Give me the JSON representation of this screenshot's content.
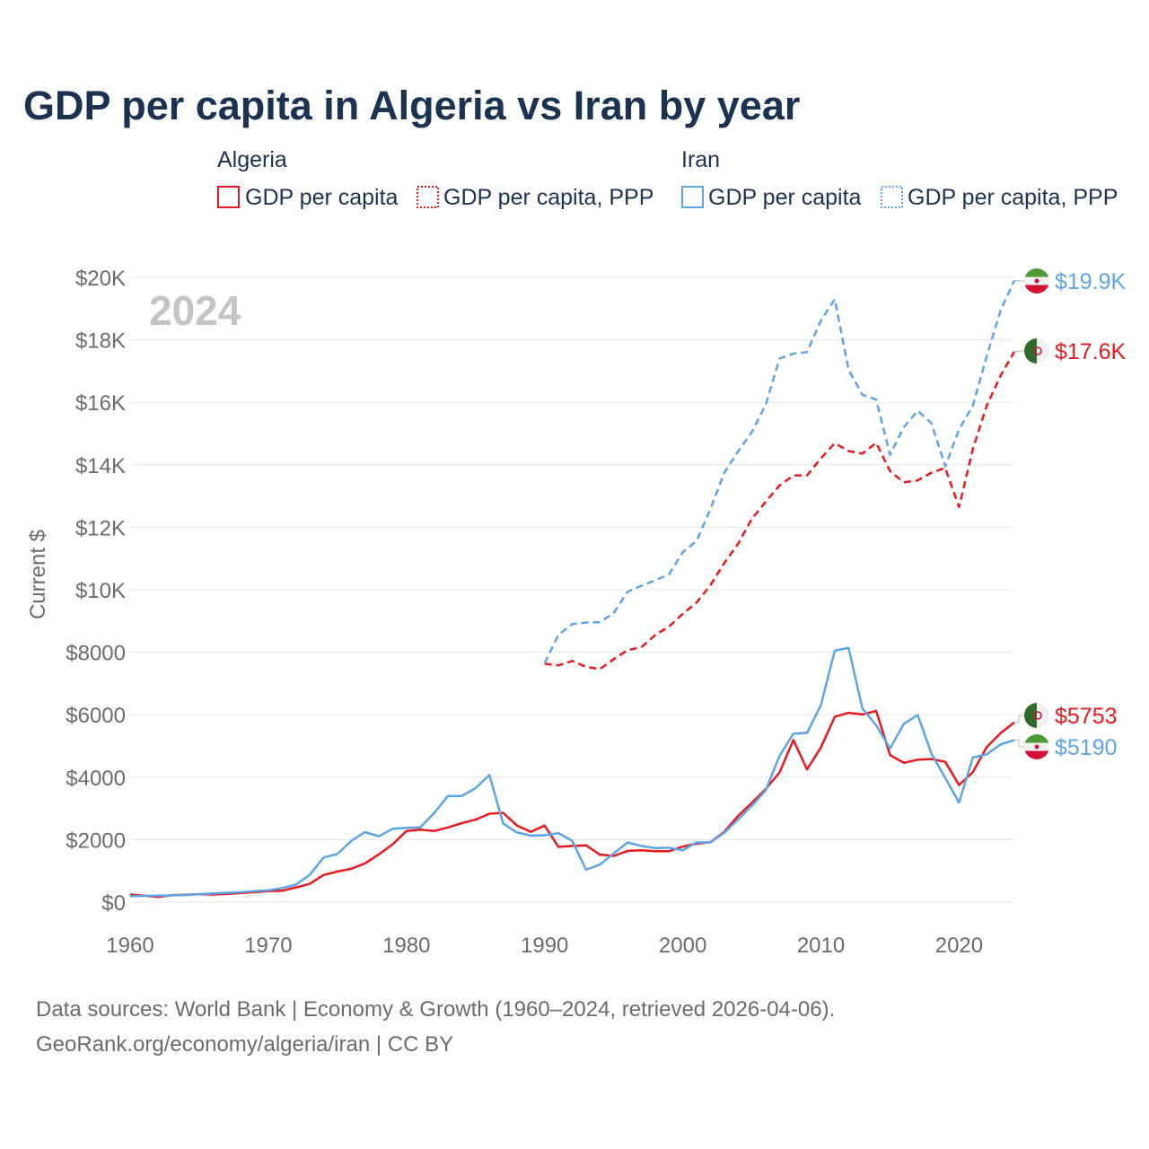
{
  "chart_data": {
    "type": "line",
    "title": "GDP per capita in Algeria vs Iran by year",
    "year_badge": "2024",
    "ylabel": "Current $",
    "xlim": [
      1960,
      2024
    ],
    "ylim": [
      0,
      20000
    ],
    "x_ticks": [
      1960,
      1970,
      1980,
      1990,
      2000,
      2010,
      2020
    ],
    "x_tick_labels": [
      "1960",
      "1970",
      "1980",
      "1990",
      "2000",
      "2010",
      "2020"
    ],
    "y_ticks": [
      0,
      2000,
      4000,
      6000,
      8000,
      10000,
      12000,
      14000,
      16000,
      18000,
      20000
    ],
    "y_tick_labels": [
      "$0",
      "$2000",
      "$4000",
      "$6000",
      "$8000",
      "$10K",
      "$12K",
      "$14K",
      "$16K",
      "$18K",
      "$20K"
    ],
    "legend": {
      "groups": [
        {
          "name": "Algeria",
          "entries": [
            "GDP per capita",
            "GDP per capita, PPP"
          ]
        },
        {
          "name": "Iran",
          "entries": [
            "GDP per capita",
            "GDP per capita, PPP"
          ]
        }
      ]
    },
    "colors": {
      "algeria": "#e8191e",
      "iran": "#5ca4e6"
    },
    "series": [
      {
        "name": "Algeria GDP per capita",
        "key": "alg_gdp",
        "color": "#e8191e",
        "dash": "solid",
        "end_label": "$5753",
        "flag": "algeria",
        "x": [
          1960,
          1961,
          1962,
          1963,
          1964,
          1965,
          1966,
          1967,
          1968,
          1969,
          1970,
          1971,
          1972,
          1973,
          1974,
          1975,
          1976,
          1977,
          1978,
          1979,
          1980,
          1981,
          1982,
          1983,
          1984,
          1985,
          1986,
          1987,
          1988,
          1989,
          1990,
          1991,
          1992,
          1993,
          1994,
          1995,
          1996,
          1997,
          1998,
          1999,
          2000,
          2001,
          2002,
          2003,
          2004,
          2005,
          2006,
          2007,
          2008,
          2009,
          2010,
          2011,
          2012,
          2013,
          2014,
          2015,
          2016,
          2017,
          2018,
          2019,
          2020,
          2021,
          2022,
          2023,
          2024
        ],
        "values": [
          245,
          210,
          165,
          220,
          235,
          255,
          245,
          265,
          290,
          320,
          350,
          365,
          470,
          585,
          870,
          980,
          1070,
          1240,
          1530,
          1850,
          2280,
          2320,
          2280,
          2390,
          2530,
          2640,
          2830,
          2860,
          2450,
          2250,
          2450,
          1770,
          1800,
          1820,
          1520,
          1480,
          1640,
          1660,
          1630,
          1630,
          1780,
          1870,
          1920,
          2250,
          2760,
          3180,
          3620,
          4150,
          5190,
          4250,
          4950,
          5930,
          6060,
          6010,
          6120,
          4710,
          4460,
          4560,
          4580,
          4490,
          3750,
          4160,
          4960,
          5410,
          5753
        ]
      },
      {
        "name": "Iran GDP per capita",
        "key": "iran_gdp",
        "color": "#5ca4e6",
        "dash": "solid",
        "end_label": "$5190",
        "flag": "iran",
        "x": [
          1960,
          1961,
          1962,
          1963,
          1964,
          1965,
          1966,
          1967,
          1968,
          1969,
          1970,
          1971,
          1972,
          1973,
          1974,
          1975,
          1976,
          1977,
          1978,
          1979,
          1980,
          1981,
          1982,
          1983,
          1984,
          1985,
          1986,
          1987,
          1988,
          1989,
          1990,
          1991,
          1992,
          1993,
          1994,
          1995,
          1996,
          1997,
          1998,
          1999,
          2000,
          2001,
          2002,
          2003,
          2004,
          2005,
          2006,
          2007,
          2008,
          2009,
          2010,
          2011,
          2012,
          2013,
          2014,
          2015,
          2016,
          2017,
          2018,
          2019,
          2020,
          2021,
          2022,
          2023,
          2024
        ],
        "values": [
          190,
          200,
          210,
          215,
          230,
          255,
          280,
          300,
          320,
          350,
          380,
          450,
          560,
          870,
          1430,
          1540,
          1960,
          2240,
          2110,
          2350,
          2380,
          2390,
          2850,
          3400,
          3400,
          3650,
          4070,
          2520,
          2230,
          2130,
          2140,
          2210,
          1960,
          1040,
          1200,
          1560,
          1910,
          1800,
          1730,
          1740,
          1660,
          1910,
          1910,
          2220,
          2640,
          3090,
          3580,
          4680,
          5390,
          5420,
          6310,
          8050,
          8140,
          6200,
          5660,
          4920,
          5710,
          5990,
          4750,
          3980,
          3190,
          4630,
          4730,
          5050,
          5190
        ]
      },
      {
        "name": "Algeria GDP per capita, PPP",
        "key": "alg_ppp",
        "color": "#e8191e",
        "dash": "dashed",
        "end_label": "$17.6K",
        "flag": "algeria",
        "x": [
          1990,
          1991,
          1992,
          1993,
          1994,
          1995,
          1996,
          1997,
          1998,
          1999,
          2000,
          2001,
          2002,
          2003,
          2004,
          2005,
          2006,
          2007,
          2008,
          2009,
          2010,
          2011,
          2012,
          2013,
          2014,
          2015,
          2016,
          2017,
          2018,
          2019,
          2020,
          2021,
          2022,
          2023,
          2024
        ],
        "values": [
          7630,
          7580,
          7720,
          7530,
          7460,
          7780,
          8070,
          8160,
          8550,
          8820,
          9230,
          9590,
          10150,
          10850,
          11470,
          12270,
          12820,
          13340,
          13660,
          13660,
          14210,
          14690,
          14440,
          14360,
          14700,
          13800,
          13440,
          13500,
          13750,
          13900,
          12650,
          14510,
          15890,
          16850,
          17620
        ]
      },
      {
        "name": "Iran GDP per capita, PPP",
        "key": "iran_ppp",
        "color": "#5ca4e6",
        "dash": "dashed",
        "end_label": "$19.9K",
        "flag": "iran",
        "x": [
          1990,
          1991,
          1992,
          1993,
          1994,
          1995,
          1996,
          1997,
          1998,
          1999,
          2000,
          2001,
          2002,
          2003,
          2004,
          2005,
          2006,
          2007,
          2008,
          2009,
          2010,
          2011,
          2012,
          2013,
          2014,
          2015,
          2016,
          2017,
          2018,
          2019,
          2020,
          2021,
          2022,
          2023,
          2024
        ],
        "values": [
          7640,
          8560,
          8900,
          8950,
          8960,
          9260,
          9930,
          10130,
          10300,
          10490,
          11200,
          11560,
          12580,
          13740,
          14430,
          15050,
          15920,
          17400,
          17560,
          17610,
          18620,
          19300,
          17050,
          16240,
          16090,
          14320,
          15210,
          15730,
          15330,
          13950,
          15130,
          15900,
          17470,
          18940,
          19900
        ]
      }
    ]
  },
  "footer": {
    "line1": "Data sources: World Bank | Economy & Growth (1960–2024, retrieved 2026-04-06).",
    "line2": "GeoRank.org/economy/algeria/iran | CC BY"
  }
}
